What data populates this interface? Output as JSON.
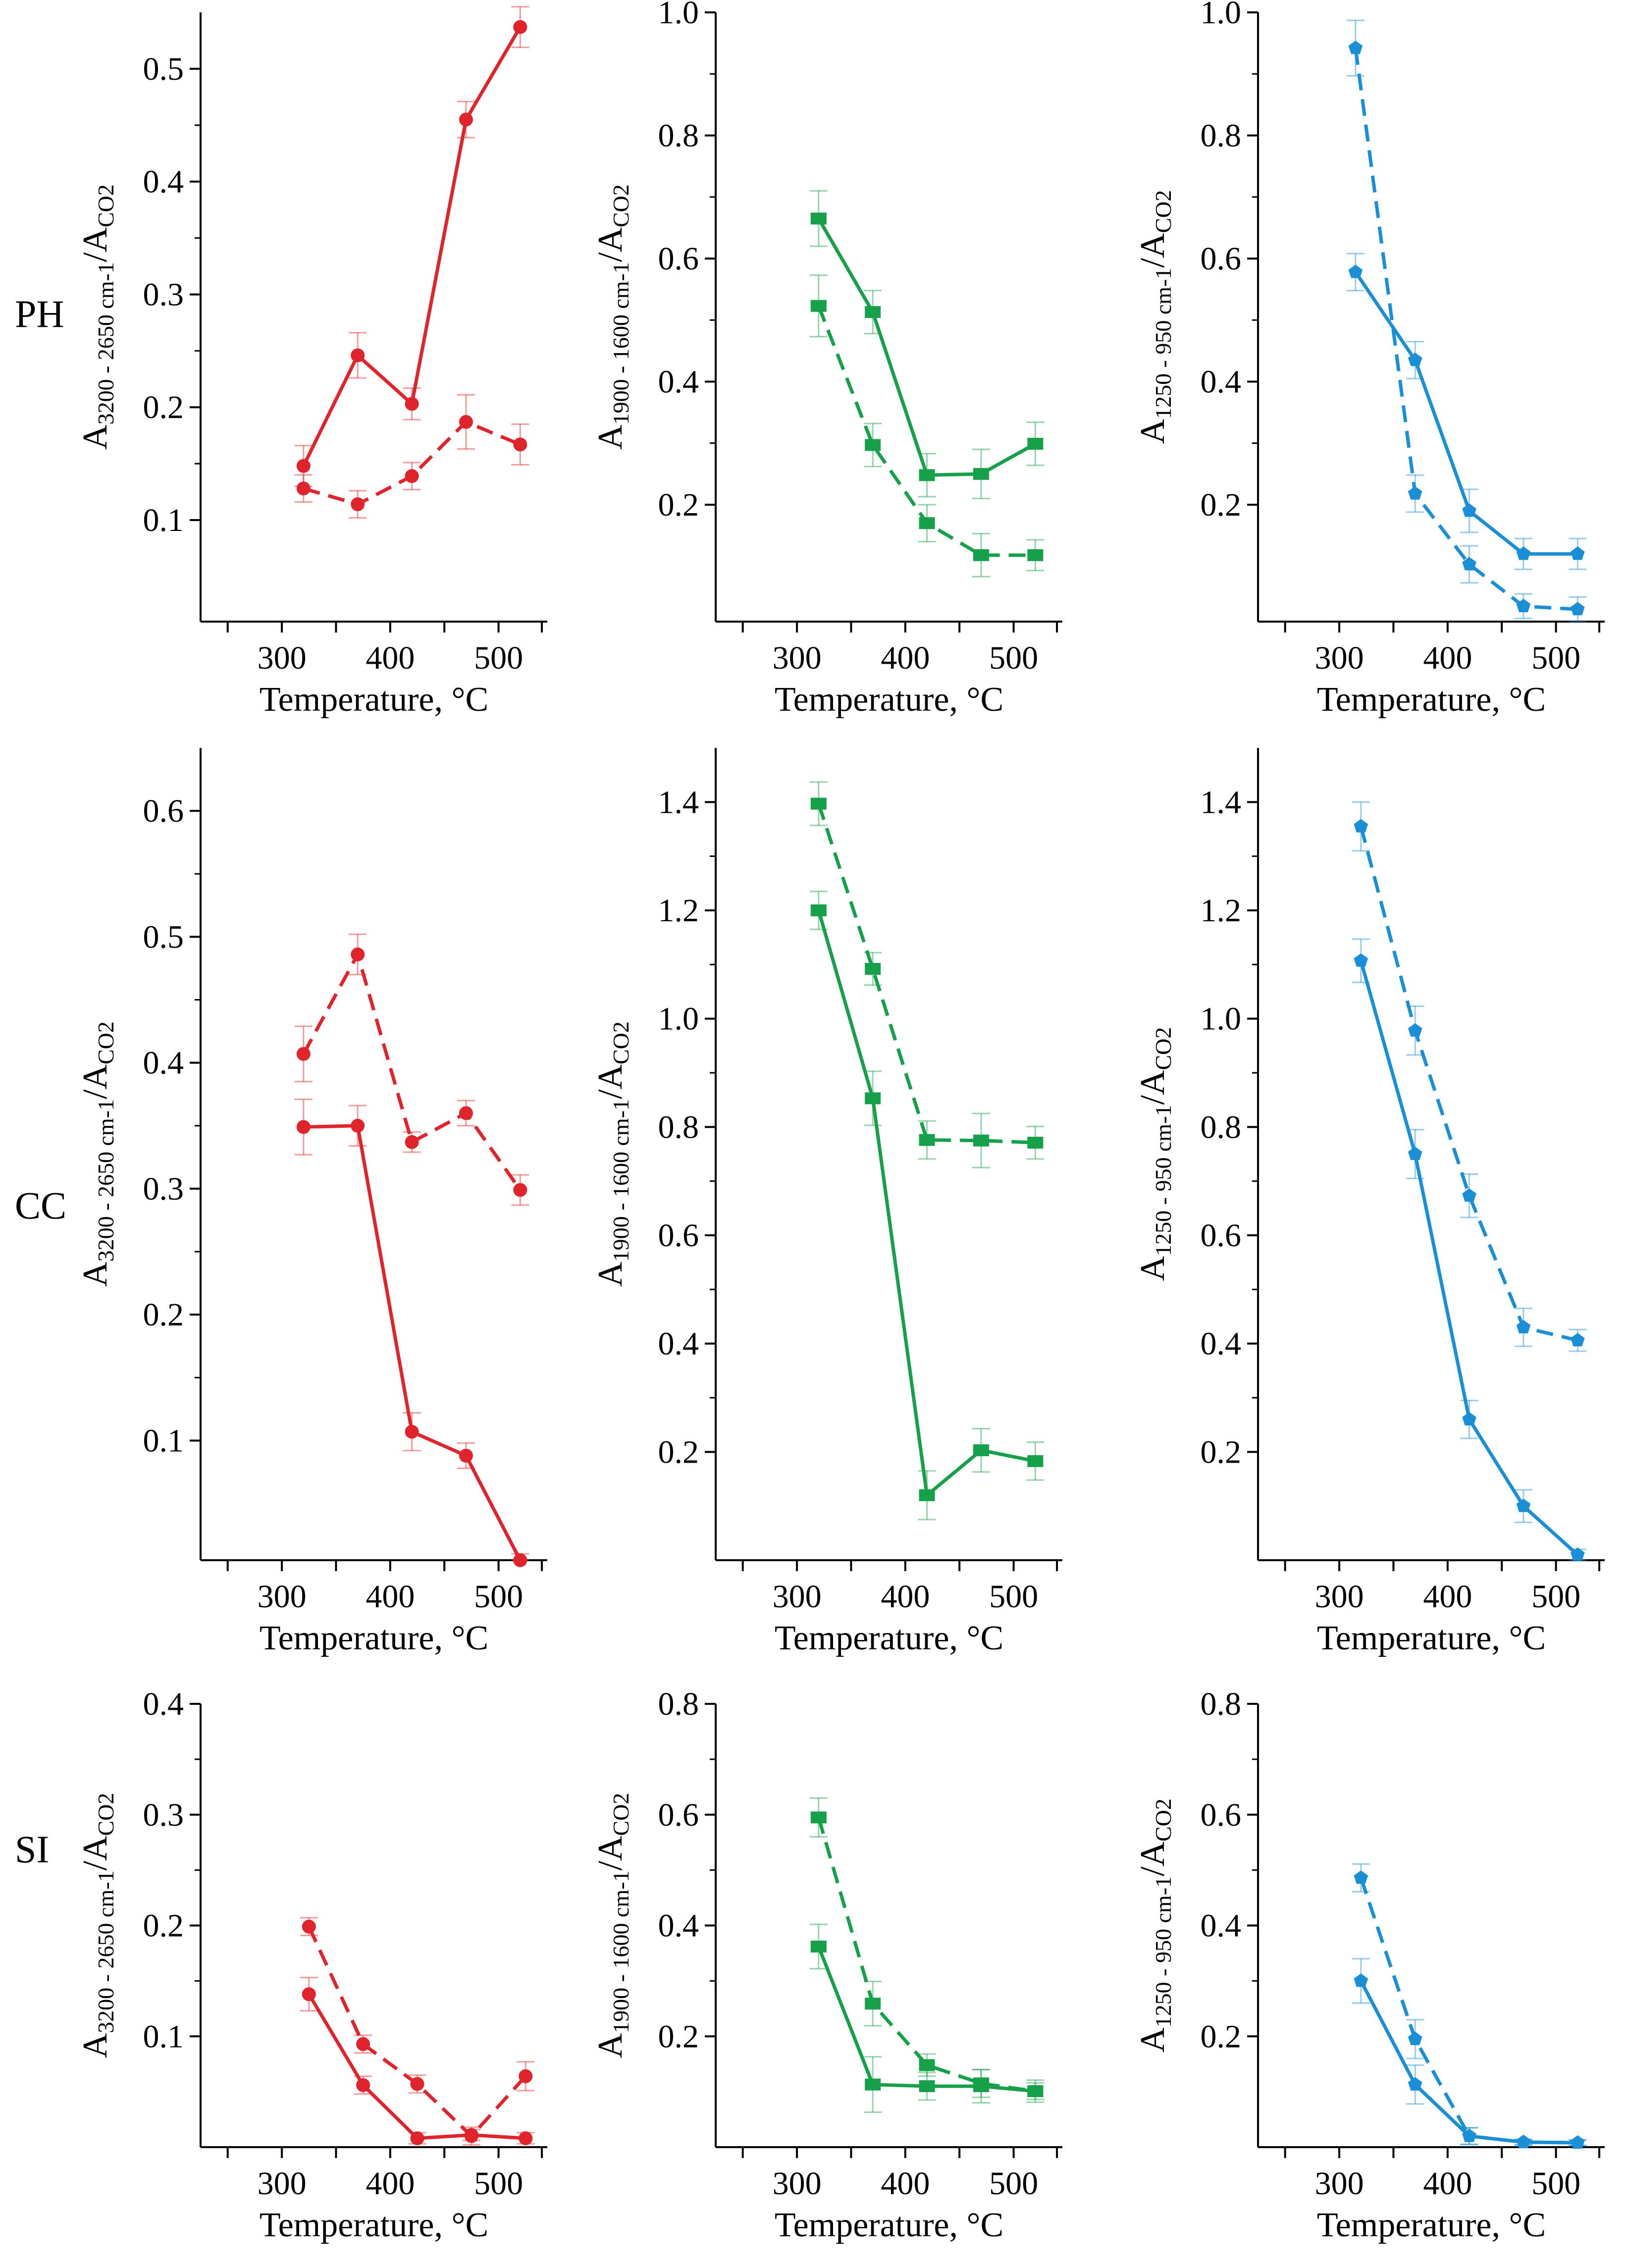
{
  "row_labels": [
    "PH",
    "CC",
    "SI"
  ],
  "x_axis_title": "Temperature, °C",
  "y_axis_titles": {
    "red": "A3200 - 2650 cm-1/ACO2",
    "green": "A1900 - 1600 cm-1/ACO2",
    "blue": "A1250 - 950 cm-1/ACO2"
  },
  "colors": {
    "red": "#e0242b",
    "green": "#16a04a",
    "blue": "#1a8fd6",
    "error": "#9ccfa9"
  },
  "chart_data": [
    {
      "id": "ph-red",
      "row": "PH",
      "type": "line",
      "color": "red",
      "marker": "circle",
      "xlabel": "Temperature, °C",
      "ylabel": "A3200 - 2650 cm-1/ACO2",
      "xlim": [
        225,
        545
      ],
      "ylim": [
        0.01,
        0.55
      ],
      "xticks": [
        300,
        400,
        500
      ],
      "yticks": [
        0.1,
        0.2,
        0.3,
        0.4,
        0.5
      ],
      "ytick_labels": [
        "0.1",
        "0.2",
        "0.3",
        "0.4",
        "0.5"
      ],
      "series": [
        {
          "style": "solid",
          "x": [
            320,
            370,
            420,
            470,
            520
          ],
          "y": [
            0.148,
            0.246,
            0.203,
            0.455,
            0.537
          ],
          "err": [
            0.018,
            0.02,
            0.014,
            0.016,
            0.018
          ]
        },
        {
          "style": "dashed",
          "x": [
            320,
            370,
            420,
            470,
            520
          ],
          "y": [
            0.128,
            0.114,
            0.139,
            0.187,
            0.167
          ],
          "err": [
            0.012,
            0.012,
            0.012,
            0.024,
            0.018
          ]
        }
      ]
    },
    {
      "id": "ph-green",
      "row": "PH",
      "type": "line",
      "color": "green",
      "marker": "square",
      "xlabel": "Temperature, °C",
      "ylabel": "A1900 - 1600 cm-1/ACO2",
      "xlim": [
        225,
        545
      ],
      "ylim": [
        0.01,
        1.0
      ],
      "xticks": [
        300,
        400,
        500
      ],
      "yticks": [
        0.2,
        0.4,
        0.6,
        0.8,
        1.0
      ],
      "ytick_labels": [
        "0.2",
        "0.4",
        "0.6",
        "0.8",
        "1.0"
      ],
      "series": [
        {
          "style": "solid",
          "x": [
            320,
            370,
            420,
            470,
            520
          ],
          "y": [
            0.665,
            0.513,
            0.248,
            0.25,
            0.299
          ],
          "err": [
            0.045,
            0.035,
            0.035,
            0.04,
            0.035
          ]
        },
        {
          "style": "dashed",
          "x": [
            320,
            370,
            420,
            470,
            520
          ],
          "y": [
            0.523,
            0.297,
            0.17,
            0.118,
            0.118
          ],
          "err": [
            0.05,
            0.035,
            0.03,
            0.035,
            0.025
          ]
        }
      ]
    },
    {
      "id": "ph-blue",
      "row": "PH",
      "type": "line",
      "color": "blue",
      "marker": "pentagon",
      "xlabel": "Temperature, °C",
      "ylabel": "A1250 - 950 cm-1/ACO2",
      "xlim": [
        225,
        545
      ],
      "ylim": [
        0.01,
        1.0
      ],
      "xticks": [
        300,
        400,
        500
      ],
      "yticks": [
        0.2,
        0.4,
        0.6,
        0.8,
        1.0
      ],
      "ytick_labels": [
        "0.2",
        "0.4",
        "0.6",
        "0.8",
        "1.0"
      ],
      "series": [
        {
          "style": "solid",
          "x": [
            315,
            370,
            420,
            470,
            520
          ],
          "y": [
            0.578,
            0.435,
            0.19,
            0.12,
            0.12
          ],
          "err": [
            0.03,
            0.03,
            0.035,
            0.025,
            0.025
          ]
        },
        {
          "style": "dashed",
          "x": [
            315,
            370,
            420,
            470,
            520
          ],
          "y": [
            0.942,
            0.218,
            0.103,
            0.035,
            0.03
          ],
          "err": [
            0.045,
            0.03,
            0.03,
            0.02,
            0.02
          ]
        }
      ]
    },
    {
      "id": "cc-red",
      "row": "CC",
      "type": "line",
      "color": "red",
      "marker": "circle",
      "xlabel": "Temperature, °C",
      "ylabel": "A3200 - 2650 cm-1/ACO2",
      "xlim": [
        225,
        545
      ],
      "ylim": [
        0.005,
        0.65
      ],
      "xticks": [
        300,
        400,
        500
      ],
      "yticks": [
        0.1,
        0.2,
        0.3,
        0.4,
        0.5,
        0.6
      ],
      "ytick_labels": [
        "0.1",
        "0.2",
        "0.3",
        "0.4",
        "0.5",
        "0.6"
      ],
      "series": [
        {
          "style": "solid",
          "x": [
            320,
            370,
            420,
            470,
            520
          ],
          "y": [
            0.349,
            0.35,
            0.107,
            0.088,
            0.005
          ],
          "err": [
            0.022,
            0.016,
            0.015,
            0.01,
            0.005
          ]
        },
        {
          "style": "dashed",
          "x": [
            320,
            370,
            420,
            470,
            520
          ],
          "y": [
            0.407,
            0.486,
            0.337,
            0.36,
            0.299
          ],
          "err": [
            0.022,
            0.016,
            0.008,
            0.01,
            0.012
          ]
        }
      ]
    },
    {
      "id": "cc-green",
      "row": "CC",
      "type": "line",
      "color": "green",
      "marker": "square",
      "xlabel": "Temperature, °C",
      "ylabel": "A1900 - 1600 cm-1/ACO2",
      "xlim": [
        225,
        545
      ],
      "ylim": [
        0.0,
        1.5
      ],
      "xticks": [
        300,
        400,
        500
      ],
      "yticks": [
        0.2,
        0.4,
        0.6,
        0.8,
        1.0,
        1.2,
        1.4
      ],
      "ytick_labels": [
        "0.2",
        "0.4",
        "0.6",
        "0.8",
        "1.0",
        "1.2",
        "1.4"
      ],
      "series": [
        {
          "style": "solid",
          "x": [
            320,
            370,
            420,
            470,
            520
          ],
          "y": [
            1.2,
            0.853,
            0.12,
            0.203,
            0.183
          ],
          "err": [
            0.035,
            0.05,
            0.045,
            0.04,
            0.035
          ]
        },
        {
          "style": "dashed",
          "x": [
            320,
            370,
            420,
            470,
            520
          ],
          "y": [
            1.397,
            1.092,
            0.776,
            0.775,
            0.771
          ],
          "err": [
            0.04,
            0.03,
            0.035,
            0.05,
            0.03
          ]
        }
      ]
    },
    {
      "id": "cc-blue",
      "row": "CC",
      "type": "line",
      "color": "blue",
      "marker": "pentagon",
      "xlabel": "Temperature, °C",
      "ylabel": "A1250 - 950 cm-1/ACO2",
      "xlim": [
        225,
        545
      ],
      "ylim": [
        0.0,
        1.5
      ],
      "xticks": [
        300,
        400,
        500
      ],
      "yticks": [
        0.2,
        0.4,
        0.6,
        0.8,
        1.0,
        1.2,
        1.4
      ],
      "ytick_labels": [
        "0.2",
        "0.4",
        "0.6",
        "0.8",
        "1.0",
        "1.2",
        "1.4"
      ],
      "series": [
        {
          "style": "solid",
          "x": [
            320,
            370,
            420,
            470,
            520
          ],
          "y": [
            1.107,
            0.75,
            0.26,
            0.1,
            0.01
          ],
          "err": [
            0.04,
            0.045,
            0.035,
            0.03,
            0.01
          ]
        },
        {
          "style": "dashed",
          "x": [
            320,
            370,
            420,
            470,
            520
          ],
          "y": [
            1.355,
            0.978,
            0.673,
            0.43,
            0.406
          ],
          "err": [
            0.045,
            0.045,
            0.04,
            0.035,
            0.02
          ]
        }
      ]
    },
    {
      "id": "si-red",
      "row": "SI",
      "type": "line",
      "color": "red",
      "marker": "circle",
      "xlabel": "Temperature, °C",
      "ylabel": "A3200 - 2650 cm-1/ACO2",
      "xlim": [
        225,
        545
      ],
      "ylim": [
        0.0,
        0.4
      ],
      "xticks": [
        300,
        400,
        500
      ],
      "yticks": [
        0.1,
        0.2,
        0.3,
        0.4
      ],
      "ytick_labels": [
        "0.1",
        "0.2",
        "0.3",
        "0.4"
      ],
      "series": [
        {
          "style": "solid",
          "x": [
            325,
            375,
            425,
            475,
            525
          ],
          "y": [
            0.138,
            0.056,
            0.008,
            0.011,
            0.008
          ],
          "err": [
            0.015,
            0.008,
            0.005,
            0.005,
            0.005
          ]
        },
        {
          "style": "dashed",
          "x": [
            325,
            375,
            425,
            475,
            525
          ],
          "y": [
            0.199,
            0.093,
            0.057,
            0.01,
            0.064
          ],
          "err": [
            0.008,
            0.008,
            0.008,
            0.008,
            0.013
          ]
        }
      ]
    },
    {
      "id": "si-green",
      "row": "SI",
      "type": "line",
      "color": "green",
      "marker": "square",
      "xlabel": "Temperature, °C",
      "ylabel": "A1900 - 1600 cm-1/ACO2",
      "xlim": [
        225,
        545
      ],
      "ylim": [
        0.0,
        0.8
      ],
      "xticks": [
        300,
        400,
        500
      ],
      "yticks": [
        0.2,
        0.4,
        0.6,
        0.8
      ],
      "ytick_labels": [
        "0.2",
        "0.4",
        "0.6",
        "0.8"
      ],
      "series": [
        {
          "style": "solid",
          "x": [
            320,
            370,
            420,
            470,
            520
          ],
          "y": [
            0.362,
            0.113,
            0.11,
            0.11,
            0.101
          ],
          "err": [
            0.04,
            0.05,
            0.025,
            0.03,
            0.02
          ]
        },
        {
          "style": "dashed",
          "x": [
            320,
            370,
            420,
            470,
            520
          ],
          "y": [
            0.595,
            0.259,
            0.148,
            0.115,
            0.101
          ],
          "err": [
            0.035,
            0.04,
            0.02,
            0.025,
            0.015
          ]
        }
      ]
    },
    {
      "id": "si-blue",
      "row": "SI",
      "type": "line",
      "color": "blue",
      "marker": "pentagon",
      "xlabel": "Temperature, °C",
      "ylabel": "A1250 - 950 cm-1/ACO2",
      "xlim": [
        225,
        545
      ],
      "ylim": [
        0.0,
        0.8
      ],
      "xticks": [
        300,
        400,
        500
      ],
      "yticks": [
        0.2,
        0.4,
        0.6,
        0.8
      ],
      "ytick_labels": [
        "0.2",
        "0.4",
        "0.6",
        "0.8"
      ],
      "series": [
        {
          "style": "solid",
          "x": [
            320,
            370,
            420,
            470,
            520
          ],
          "y": [
            0.3,
            0.113,
            0.02,
            0.009,
            0.008
          ],
          "err": [
            0.04,
            0.035,
            0.015,
            0.005,
            0.005
          ]
        },
        {
          "style": "dashed",
          "x": [
            320,
            370,
            420,
            470,
            520
          ],
          "y": [
            0.486,
            0.195,
            0.02,
            0.009,
            0.008
          ],
          "err": [
            0.025,
            0.035,
            0.015,
            0.005,
            0.005
          ]
        }
      ]
    }
  ]
}
